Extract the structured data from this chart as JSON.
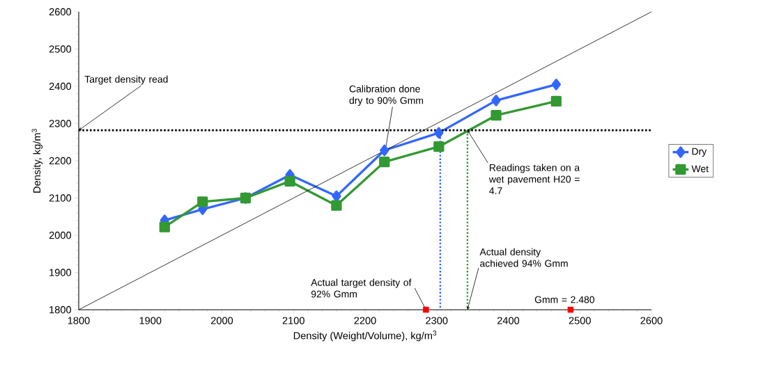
{
  "chart_data": {
    "type": "line",
    "xlabel": "Density (Weight/Volume), kg/m$^{3}$",
    "ylabel": "Density, kg/m$^{3}$",
    "xlim": [
      1800,
      2600
    ],
    "xticks": [
      1800,
      1900,
      2000,
      2100,
      2200,
      2300,
      2400,
      2500,
      2600
    ],
    "ylim": [
      1800,
      2600
    ],
    "yticks": [
      1800,
      1900,
      2000,
      2100,
      2200,
      2300,
      2400,
      2500,
      2600
    ],
    "legend": "right",
    "grid": false,
    "series": [
      {
        "name": "Dry",
        "color": "#3366ff",
        "marker": "diamond",
        "x": [
          1920,
          1973,
          2033,
          2095,
          2160,
          2227,
          2303,
          2383,
          2467
        ],
        "values": [
          2040,
          2070,
          2100,
          2162,
          2105,
          2228,
          2275,
          2362,
          2405
        ]
      },
      {
        "name": "Wet",
        "color": "#339933",
        "marker": "square",
        "x": [
          1920,
          1973,
          2033,
          2095,
          2160,
          2227,
          2303,
          2383,
          2467
        ],
        "values": [
          2022,
          2090,
          2100,
          2145,
          2080,
          2197,
          2238,
          2322,
          2360
        ]
      },
      {
        "color": "#000000",
        "x": [
          1800,
          2600
        ],
        "values": [
          1800,
          2600
        ]
      },
      {
        "color": "#3366ff",
        "line_style": "dotted",
        "x": [
          2305,
          2305
        ],
        "values": [
          2282,
          1800
        ]
      },
      {
        "color": "#339933",
        "line_style": "dotted",
        "x": [
          2343,
          2343
        ],
        "values": [
          2282,
          1800
        ]
      },
      {
        "type": "scatter",
        "color": "#ff0000",
        "marker": "square",
        "x": [
          2285,
          2487
        ],
        "values": [
          1800,
          1800
        ]
      }
    ],
    "ref_lines": [
      {
        "axis": "y",
        "value": 2282,
        "color": "#000000",
        "line_style": "dotted"
      }
    ],
    "annotations": [
      {
        "text": "Target density read",
        "x": 1800,
        "y": 2282
      },
      {
        "text": "Calibration done dry to 90% Gmm",
        "x": 2228,
        "y": 2225
      },
      {
        "text": "Readings taken on a wet pavement H20 = 4.7",
        "x": 2343,
        "y": 2282
      },
      {
        "text": "Actual target density of 92% Gmm",
        "x": 2285,
        "y": 1800
      },
      {
        "text": "Actual density achieved 94% Gmm",
        "x": 2343,
        "y": 1800
      },
      {
        "text": "Gmm = 2.480",
        "x": 2487,
        "y": 1800
      }
    ]
  }
}
